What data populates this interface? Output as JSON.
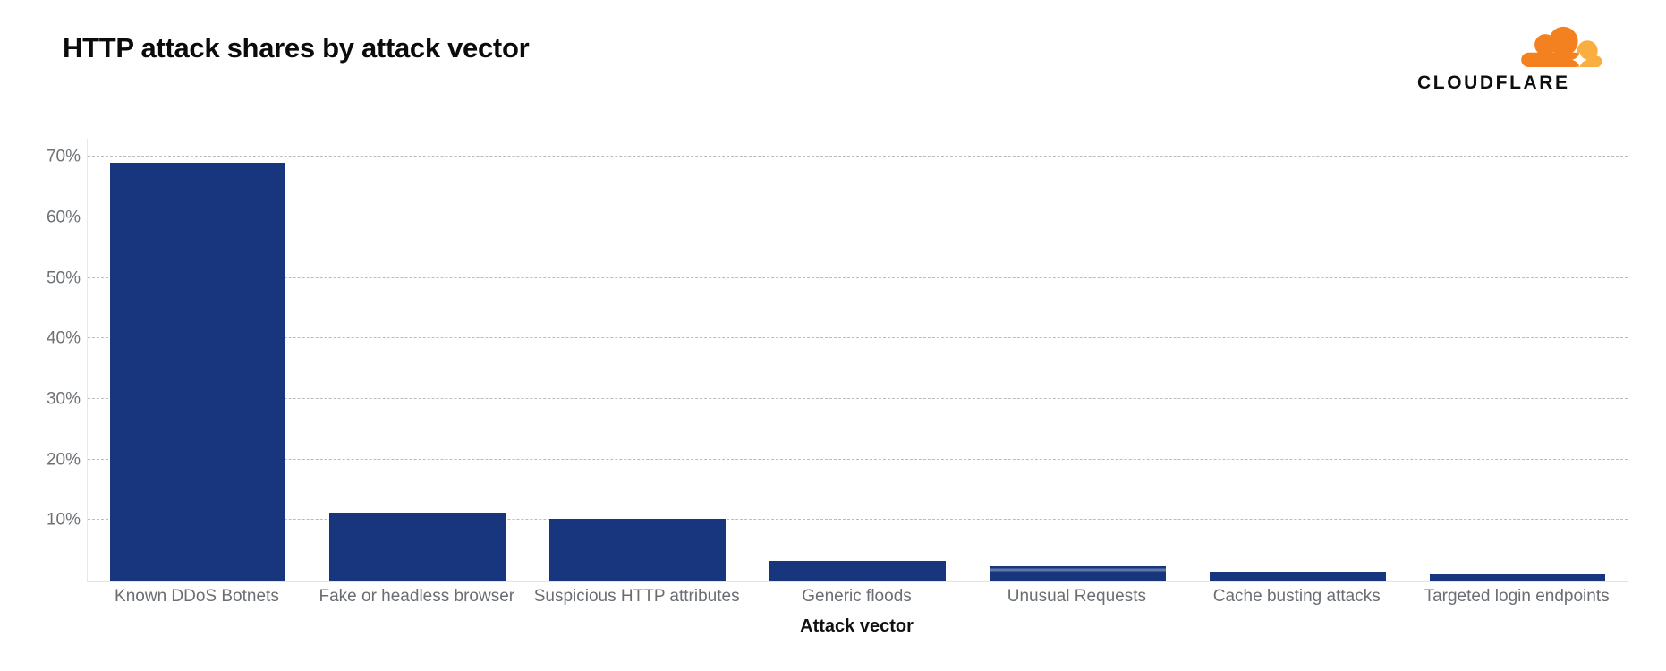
{
  "header": {
    "title": "HTTP attack shares by attack vector",
    "logo_text": "CLOUDFLARE",
    "logo_colors": {
      "cloud_main": "#F48120",
      "cloud_light": "#FAAE40",
      "text": "#0D0E0E"
    }
  },
  "chart_data": {
    "type": "bar",
    "title": "HTTP attack shares by attack vector",
    "xlabel": "Attack vector",
    "ylabel": "",
    "unit": "%",
    "categories": [
      "Known DDoS Botnets",
      "Fake or headless browser",
      "Suspicious HTTP attributes",
      "Generic floods",
      "Unusual Requests",
      "Cache busting attacks",
      "Targeted login endpoints"
    ],
    "values": [
      69,
      11.2,
      10.2,
      3.2,
      2.4,
      1.5,
      1.0
    ],
    "ylim": [
      0,
      73
    ],
    "gridline_values": [
      10,
      20,
      30,
      40,
      50,
      60,
      70
    ],
    "ytick_labels": [
      "10%",
      "20%",
      "30%",
      "40%",
      "50%",
      "60%",
      "70%"
    ],
    "grid_style": "horizontal dashed",
    "legend": "none",
    "bar_color": "#17367E",
    "striped_bar_category": "Unusual Requests"
  }
}
